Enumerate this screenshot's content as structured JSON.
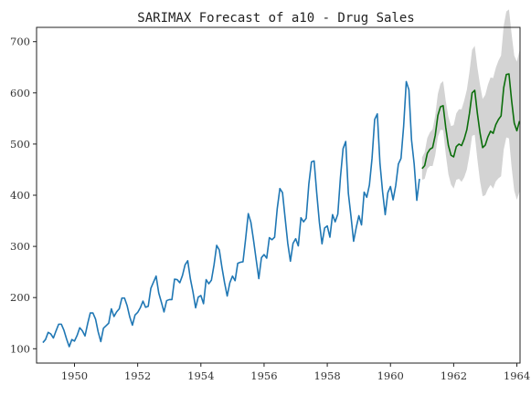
{
  "chart_data": {
    "type": "line",
    "title": "SARIMAX Forecast of a10 - Drug Sales",
    "xlabel": "",
    "ylabel": "",
    "xlim": [
      1948.8,
      1964.1
    ],
    "ylim": [
      72,
      728
    ],
    "grid": false,
    "x_ticks": [
      1950,
      1952,
      1954,
      1956,
      1958,
      1960,
      1962,
      1964
    ],
    "x_tick_labels": [
      "1950",
      "1952",
      "1954",
      "1956",
      "1958",
      "1960",
      "1962",
      "1964"
    ],
    "y_ticks": [
      100,
      200,
      300,
      400,
      500,
      600,
      700
    ],
    "y_tick_labels": [
      "100",
      "200",
      "300",
      "400",
      "500",
      "600",
      "700"
    ],
    "x_start": 1949.0,
    "x_step": 0.0833333,
    "colors": {
      "observed": "#1f77b4",
      "forecast": "#0b6e0b",
      "confidence_band": "#c8c8c8"
    },
    "series": [
      {
        "role": "observed",
        "values": [
          112,
          118,
          132,
          129,
          121,
          135,
          148,
          148,
          136,
          119,
          104,
          118,
          115,
          126,
          141,
          135,
          125,
          149,
          170,
          170,
          158,
          133,
          114,
          140,
          145,
          150,
          178,
          163,
          172,
          178,
          199,
          199,
          184,
          162,
          146,
          166,
          171,
          180,
          193,
          181,
          183,
          218,
          230,
          242,
          209,
          191,
          172,
          194,
          196,
          196,
          236,
          235,
          229,
          243,
          264,
          272,
          237,
          211,
          180,
          201,
          204,
          188,
          235,
          227,
          234,
          264,
          302,
          293,
          259,
          229,
          203,
          229,
          242,
          233,
          267,
          269,
          270,
          315,
          364,
          347,
          312,
          274,
          237,
          278,
          284,
          277,
          317,
          313,
          318,
          374,
          413,
          405,
          355,
          306,
          271,
          306,
          315,
          301,
          356,
          348,
          355,
          422,
          465,
          467,
          404,
          347,
          305,
          336,
          340,
          318,
          362,
          348,
          363,
          435,
          491,
          505,
          404,
          359,
          310,
          337,
          360,
          342,
          406,
          396,
          420,
          472,
          548,
          559,
          463,
          407,
          362,
          405,
          417,
          391,
          419,
          461,
          472,
          535,
          622,
          606,
          508,
          461,
          390,
          432
        ]
      },
      {
        "role": "forecast",
        "x_start": 1961.0,
        "values": [
          452,
          458,
          482,
          490,
          493,
          517,
          556,
          573,
          575,
          532,
          497,
          478,
          475,
          495,
          500,
          497,
          510,
          528,
          560,
          600,
          605,
          560,
          522,
          493,
          498,
          514,
          525,
          521,
          538,
          548,
          555,
          610,
          636,
          637,
          585,
          541,
          526,
          545
        ]
      },
      {
        "role": "confidence_band",
        "x_start": 1961.0,
        "lower": [
          430,
          432,
          452,
          457,
          457,
          478,
          514,
          528,
          527,
          480,
          441,
          421,
          413,
          430,
          432,
          426,
          435,
          450,
          479,
          516,
          518,
          470,
          428,
          398,
          400,
          412,
          420,
          413,
          427,
          433,
          437,
          489,
          513,
          511,
          455,
          409,
          391,
          407
        ],
        "upper": [
          474,
          484,
          512,
          523,
          529,
          556,
          598,
          618,
          623,
          584,
          553,
          535,
          537,
          560,
          568,
          568,
          585,
          606,
          641,
          684,
          692,
          650,
          616,
          588,
          596,
          616,
          630,
          629,
          649,
          663,
          673,
          731,
          759,
          763,
          715,
          673,
          661,
          683
        ]
      }
    ]
  }
}
